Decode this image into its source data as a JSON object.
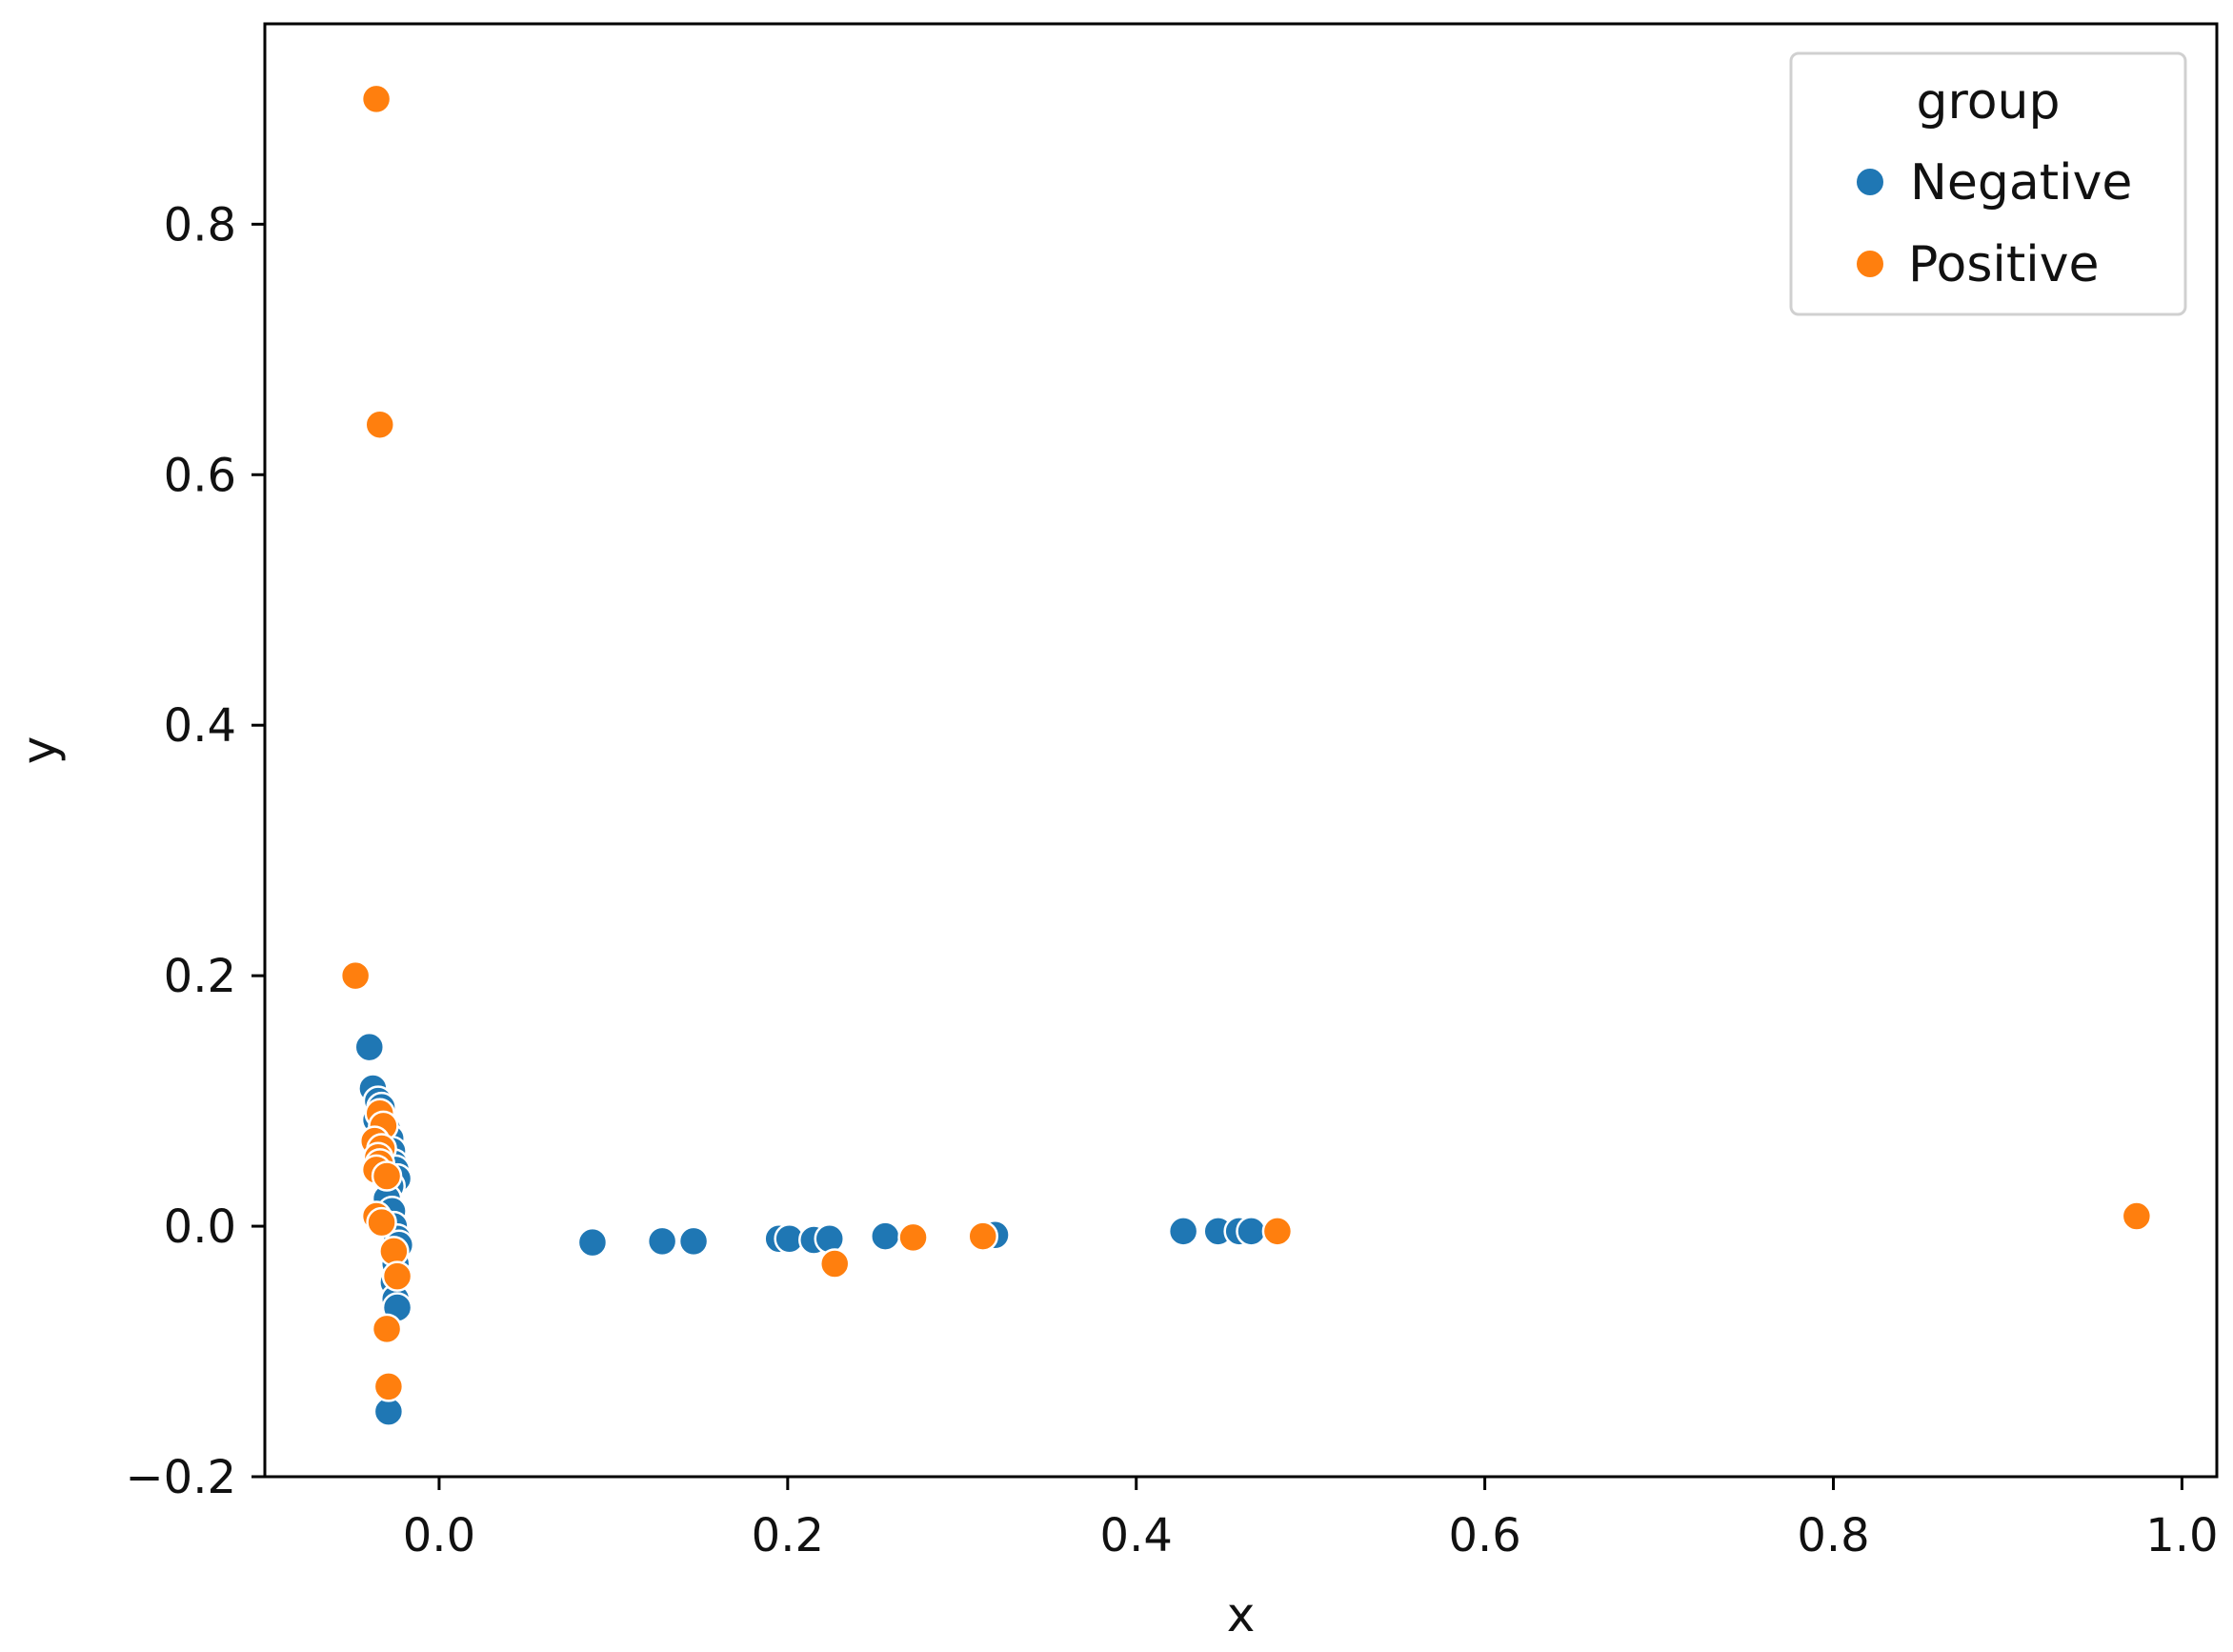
{
  "chart_data": {
    "type": "scatter",
    "xlabel": "x",
    "ylabel": "y",
    "xlim": [
      -0.1,
      1.02
    ],
    "ylim": [
      -0.2,
      0.96
    ],
    "xticks": [
      0.0,
      0.2,
      0.4,
      0.6,
      0.8,
      1.0
    ],
    "xtick_labels": [
      "0.0",
      "0.2",
      "0.4",
      "0.6",
      "0.8",
      "1.0"
    ],
    "yticks": [
      -0.2,
      0.0,
      0.2,
      0.4,
      0.6,
      0.8
    ],
    "ytick_labels": [
      "−0.2",
      "0.0",
      "0.2",
      "0.4",
      "0.6",
      "0.8"
    ],
    "grid": false,
    "legend": {
      "title": "group",
      "position": "top-right"
    },
    "series": [
      {
        "name": "Negative",
        "color": "#1f77b4",
        "points": [
          [
            -0.04,
            0.143
          ],
          [
            -0.038,
            0.11
          ],
          [
            -0.035,
            0.1
          ],
          [
            -0.033,
            0.095
          ],
          [
            -0.036,
            0.085
          ],
          [
            -0.03,
            0.078
          ],
          [
            -0.028,
            0.07
          ],
          [
            -0.027,
            0.06
          ],
          [
            -0.026,
            0.05
          ],
          [
            -0.025,
            0.045
          ],
          [
            -0.024,
            0.038
          ],
          [
            -0.028,
            0.032
          ],
          [
            -0.03,
            0.022
          ],
          [
            -0.027,
            0.012
          ],
          [
            -0.026,
            0.0
          ],
          [
            -0.024,
            -0.01
          ],
          [
            -0.023,
            -0.015
          ],
          [
            -0.025,
            -0.03
          ],
          [
            -0.026,
            -0.045
          ],
          [
            -0.025,
            -0.058
          ],
          [
            -0.024,
            -0.065
          ],
          [
            -0.029,
            -0.148
          ],
          [
            0.088,
            -0.013
          ],
          [
            0.128,
            -0.012
          ],
          [
            0.146,
            -0.012
          ],
          [
            0.195,
            -0.01
          ],
          [
            0.201,
            -0.01
          ],
          [
            0.215,
            -0.011
          ],
          [
            0.224,
            -0.01
          ],
          [
            0.256,
            -0.008
          ],
          [
            0.319,
            -0.007
          ],
          [
            0.427,
            -0.004
          ],
          [
            0.447,
            -0.004
          ],
          [
            0.459,
            -0.004
          ],
          [
            0.466,
            -0.004
          ]
        ]
      },
      {
        "name": "Positive",
        "color": "#ff7f0e",
        "points": [
          [
            -0.036,
            0.9
          ],
          [
            -0.034,
            0.64
          ],
          [
            -0.048,
            0.2
          ],
          [
            -0.034,
            0.09
          ],
          [
            -0.032,
            0.08
          ],
          [
            -0.037,
            0.068
          ],
          [
            -0.033,
            0.062
          ],
          [
            -0.035,
            0.055
          ],
          [
            -0.034,
            0.05
          ],
          [
            -0.036,
            0.045
          ],
          [
            -0.03,
            0.04
          ],
          [
            -0.036,
            0.008
          ],
          [
            -0.033,
            0.003
          ],
          [
            -0.026,
            -0.02
          ],
          [
            -0.024,
            -0.04
          ],
          [
            -0.03,
            -0.082
          ],
          [
            -0.029,
            -0.128
          ],
          [
            0.227,
            -0.03
          ],
          [
            0.272,
            -0.009
          ],
          [
            0.312,
            -0.008
          ],
          [
            0.481,
            -0.004
          ],
          [
            0.974,
            0.008
          ]
        ]
      }
    ]
  }
}
